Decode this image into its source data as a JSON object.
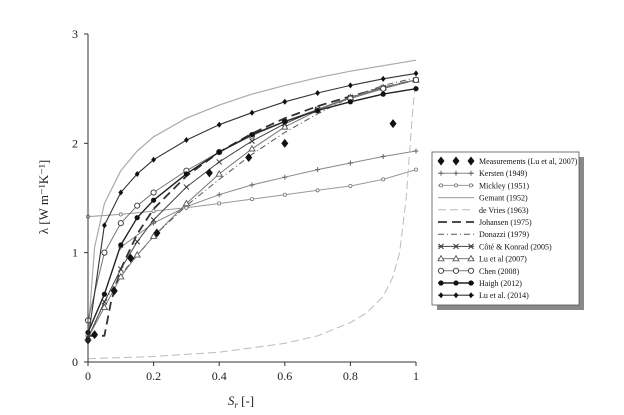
{
  "chart_data": {
    "type": "line",
    "title": "",
    "xlabel_main": "S",
    "xlabel_sub": "r",
    "xlabel_unit": " [-]",
    "ylabel": "λ [W m⁻¹K⁻¹]",
    "xlim": [
      0,
      1
    ],
    "ylim": [
      0,
      3
    ],
    "xticks": [
      0,
      0.2,
      0.4,
      0.6,
      0.8,
      1
    ],
    "xtick_labels": [
      "0",
      "0.2",
      "0.4",
      "0.6",
      "0.8",
      "1"
    ],
    "yticks": [
      0,
      1,
      2,
      3
    ],
    "ytick_labels": [
      "0",
      "1",
      "2",
      "3"
    ],
    "grid": false,
    "legend_position": "right",
    "series": [
      {
        "name": "Measurements (Lu et al, 2007)",
        "style": "scatter-diamond",
        "x": [
          0,
          0.02,
          0.08,
          0.13,
          0.21,
          0.37,
          0.49,
          0.6,
          0.93
        ],
        "y": [
          0.2,
          0.25,
          0.65,
          0.95,
          1.18,
          1.73,
          1.87,
          2.0,
          2.18
        ]
      },
      {
        "name": "Kersten (1949)",
        "style": "solid-plus",
        "x": [
          0.1,
          0.2,
          0.3,
          0.4,
          0.5,
          0.6,
          0.7,
          0.8,
          0.9,
          1.0
        ],
        "y": [
          1.05,
          1.27,
          1.42,
          1.53,
          1.62,
          1.69,
          1.76,
          1.82,
          1.88,
          1.93
        ]
      },
      {
        "name": "Mickley (1951)",
        "style": "solid-smallcircle",
        "x": [
          0,
          0.1,
          0.2,
          0.3,
          0.4,
          0.5,
          0.6,
          0.7,
          0.8,
          0.9,
          1.0
        ],
        "y": [
          1.33,
          1.35,
          1.38,
          1.41,
          1.45,
          1.49,
          1.53,
          1.57,
          1.61,
          1.67,
          1.76
        ]
      },
      {
        "name": "Gemant (1952)",
        "style": "solid",
        "x": [
          0,
          0.02,
          0.05,
          0.1,
          0.15,
          0.2,
          0.3,
          0.4,
          0.5,
          0.6,
          0.7,
          0.8,
          0.9,
          1.0
        ],
        "y": [
          0.25,
          1.05,
          1.45,
          1.75,
          1.93,
          2.06,
          2.23,
          2.35,
          2.45,
          2.53,
          2.6,
          2.66,
          2.71,
          2.76
        ]
      },
      {
        "name": "de Vries (1963)",
        "style": "long-dash-light",
        "x": [
          0,
          0.2,
          0.4,
          0.6,
          0.7,
          0.8,
          0.85,
          0.9,
          0.93,
          0.95,
          0.97,
          0.99,
          1.0
        ],
        "y": [
          0.03,
          0.05,
          0.09,
          0.17,
          0.24,
          0.36,
          0.45,
          0.6,
          0.78,
          1.0,
          1.5,
          2.3,
          2.6
        ]
      },
      {
        "name": "Johansen (1975)",
        "style": "long-dash-bold",
        "x": [
          0,
          0.05,
          0.07,
          0.1,
          0.15,
          0.2,
          0.3,
          0.4,
          0.5,
          0.6,
          0.7,
          0.8,
          0.9,
          1.0
        ],
        "y": [
          0.24,
          0.24,
          0.55,
          0.85,
          1.17,
          1.4,
          1.7,
          1.92,
          2.09,
          2.23,
          2.34,
          2.43,
          2.51,
          2.58
        ]
      },
      {
        "name": "Donazzi (1979)",
        "style": "dash-dot",
        "x": [
          0,
          0.02,
          0.05,
          0.1,
          0.2,
          0.3,
          0.4,
          0.5,
          0.6,
          0.7,
          0.8,
          0.9,
          1.0
        ],
        "y": [
          0.22,
          0.35,
          0.55,
          0.8,
          1.15,
          1.43,
          1.67,
          1.9,
          2.1,
          2.27,
          2.42,
          2.53,
          2.6
        ]
      },
      {
        "name": "Côté & Konrad (2005)",
        "style": "solid-x",
        "x": [
          0,
          0.05,
          0.1,
          0.15,
          0.2,
          0.3,
          0.4,
          0.5,
          0.6,
          0.7,
          0.8,
          0.9,
          1.0
        ],
        "y": [
          0.22,
          0.55,
          0.85,
          1.1,
          1.3,
          1.6,
          1.83,
          2.02,
          2.18,
          2.31,
          2.42,
          2.51,
          2.58
        ]
      },
      {
        "name": "Lu et al (2007)",
        "style": "solid-triangle",
        "x": [
          0,
          0.05,
          0.1,
          0.15,
          0.2,
          0.3,
          0.4,
          0.5,
          0.6,
          0.7,
          0.8,
          0.9,
          1.0
        ],
        "y": [
          0.22,
          0.5,
          0.78,
          0.98,
          1.15,
          1.45,
          1.72,
          1.95,
          2.15,
          2.3,
          2.42,
          2.51,
          2.58
        ]
      },
      {
        "name": "Chen (2008)",
        "style": "solid-circle",
        "x": [
          0,
          0.05,
          0.1,
          0.15,
          0.2,
          0.3,
          0.4,
          0.5,
          0.6,
          0.7,
          0.8,
          0.9,
          1.0
        ],
        "y": [
          0.38,
          1.0,
          1.27,
          1.43,
          1.55,
          1.75,
          1.92,
          2.07,
          2.2,
          2.31,
          2.41,
          2.5,
          2.58
        ]
      },
      {
        "name": "Haigh (2012)",
        "style": "solid-dot",
        "x": [
          0,
          0.05,
          0.1,
          0.15,
          0.2,
          0.3,
          0.4,
          0.5,
          0.6,
          0.7,
          0.8,
          0.9,
          1.0
        ],
        "y": [
          0.27,
          0.62,
          1.07,
          1.32,
          1.48,
          1.72,
          1.92,
          2.08,
          2.2,
          2.3,
          2.38,
          2.45,
          2.5
        ]
      },
      {
        "name": "Lu et al. (2014)",
        "style": "solid-diamond",
        "x": [
          0,
          0.05,
          0.1,
          0.15,
          0.2,
          0.3,
          0.4,
          0.5,
          0.6,
          0.7,
          0.8,
          0.9,
          1.0
        ],
        "y": [
          0.21,
          1.25,
          1.55,
          1.72,
          1.85,
          2.03,
          2.17,
          2.28,
          2.38,
          2.46,
          2.53,
          2.59,
          2.64
        ]
      }
    ]
  }
}
